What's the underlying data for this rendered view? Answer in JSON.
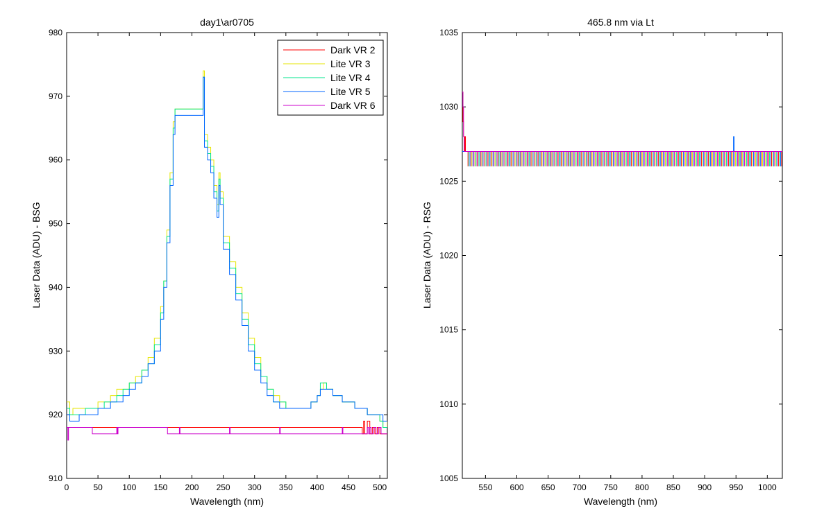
{
  "chart_data": [
    {
      "type": "line",
      "title": "day1\\ar0705",
      "xlabel": "Wavelength (nm)",
      "ylabel": "Laser Data (ADU) - BSG",
      "xlim": [
        0,
        512
      ],
      "ylim": [
        910,
        980
      ],
      "xticks": [
        0,
        50,
        100,
        150,
        200,
        250,
        300,
        350,
        400,
        450,
        500
      ],
      "yticks": [
        910,
        920,
        930,
        940,
        950,
        960,
        970,
        980
      ],
      "grid": false,
      "legend": "top-right",
      "series": [
        {
          "name": "Dark VR 2",
          "color": "#ff0000",
          "x": [
            0,
            100,
            200,
            300,
            400,
            470,
            472,
            474,
            476,
            480,
            484,
            488,
            492,
            496,
            500,
            504,
            508,
            512
          ],
          "y": [
            918,
            918,
            918,
            918,
            918,
            918,
            917,
            919,
            917,
            919,
            917,
            918,
            917,
            918,
            917,
            917,
            917,
            917
          ]
        },
        {
          "name": "Lite VR 3",
          "color": "#e6e600",
          "x": [
            0,
            5,
            10,
            20,
            30,
            40,
            50,
            60,
            70,
            80,
            90,
            100,
            110,
            120,
            130,
            140,
            150,
            155,
            160,
            165,
            170,
            173,
            218,
            220,
            225,
            230,
            235,
            240,
            243,
            245,
            250,
            260,
            270,
            280,
            290,
            300,
            310,
            320,
            330,
            340,
            350,
            360,
            370,
            380,
            390,
            400,
            405,
            410,
            415,
            420,
            425,
            430,
            440,
            450,
            460,
            470,
            480,
            490,
            500,
            505,
            512
          ],
          "y": [
            922,
            920,
            921,
            921,
            921,
            921,
            922,
            922,
            923,
            924,
            924,
            925,
            926,
            927,
            929,
            932,
            937,
            941,
            949,
            958,
            966,
            968,
            974,
            964,
            962,
            960,
            956,
            953,
            958,
            955,
            948,
            944,
            940,
            936,
            932,
            929,
            926,
            924,
            923,
            922,
            921,
            921,
            921,
            921,
            922,
            923,
            924,
            925,
            924,
            924,
            923,
            923,
            922,
            922,
            921,
            921,
            920,
            920,
            919,
            918,
            919
          ]
        },
        {
          "name": "Lite VR 4",
          "color": "#00e68c",
          "x": [
            0,
            5,
            10,
            20,
            30,
            40,
            50,
            60,
            70,
            80,
            90,
            100,
            110,
            120,
            130,
            140,
            150,
            155,
            160,
            165,
            170,
            173,
            218,
            220,
            225,
            230,
            235,
            240,
            243,
            245,
            250,
            260,
            270,
            280,
            290,
            300,
            310,
            320,
            330,
            340,
            350,
            360,
            370,
            380,
            390,
            400,
            405,
            410,
            415,
            420,
            425,
            430,
            440,
            450,
            460,
            470,
            480,
            490,
            500,
            505,
            512
          ],
          "y": [
            921,
            920,
            920,
            920,
            921,
            921,
            921,
            922,
            922,
            923,
            924,
            925,
            925,
            927,
            928,
            931,
            936,
            941,
            948,
            957,
            965,
            968,
            973,
            963,
            961,
            959,
            955,
            952,
            957,
            954,
            947,
            943,
            939,
            935,
            931,
            928,
            926,
            924,
            922,
            922,
            921,
            921,
            921,
            921,
            922,
            923,
            925,
            925,
            924,
            924,
            923,
            923,
            922,
            922,
            921,
            921,
            920,
            920,
            919,
            918,
            918
          ]
        },
        {
          "name": "Lite VR 5",
          "color": "#0066ff",
          "x": [
            0,
            5,
            10,
            20,
            30,
            40,
            50,
            60,
            70,
            80,
            90,
            100,
            110,
            120,
            130,
            140,
            150,
            155,
            160,
            165,
            170,
            173,
            218,
            220,
            225,
            230,
            235,
            240,
            243,
            245,
            250,
            260,
            270,
            280,
            290,
            300,
            310,
            320,
            330,
            340,
            350,
            360,
            370,
            380,
            390,
            400,
            405,
            410,
            415,
            420,
            425,
            430,
            440,
            450,
            460,
            470,
            480,
            490,
            500,
            505,
            512
          ],
          "y": [
            920,
            919,
            919,
            920,
            920,
            920,
            921,
            921,
            922,
            922,
            923,
            924,
            925,
            926,
            928,
            930,
            935,
            940,
            947,
            956,
            964,
            967,
            973,
            962,
            960,
            958,
            954,
            951,
            956,
            953,
            946,
            942,
            938,
            934,
            930,
            927,
            925,
            923,
            922,
            921,
            921,
            921,
            921,
            921,
            922,
            923,
            924,
            924,
            924,
            924,
            923,
            923,
            922,
            922,
            921,
            921,
            920,
            920,
            920,
            919,
            919
          ]
        },
        {
          "name": "Dark VR 6",
          "color": "#cc00cc",
          "x": [
            0,
            2,
            3,
            4,
            40,
            41,
            80,
            81,
            82,
            160,
            161,
            180,
            181,
            260,
            261,
            340,
            341,
            440,
            441,
            480,
            482,
            484,
            486,
            490,
            494,
            498,
            502,
            512
          ],
          "y": [
            918,
            916,
            918,
            918,
            918,
            917,
            918,
            917,
            918,
            918,
            917,
            918,
            917,
            918,
            917,
            918,
            917,
            918,
            917,
            918,
            917,
            918,
            917,
            918,
            917,
            918,
            917,
            917
          ]
        }
      ]
    },
    {
      "type": "line",
      "title": "465.8 nm via Lt",
      "xlabel": "Wavelength (nm)",
      "ylabel": "Laser Data (ADU) - RSG",
      "xlim": [
        513,
        1024
      ],
      "ylim": [
        1005,
        1035
      ],
      "xticks": [
        550,
        600,
        650,
        700,
        750,
        800,
        850,
        900,
        950,
        1000
      ],
      "yticks": [
        1005,
        1010,
        1015,
        1020,
        1025,
        1030,
        1035
      ],
      "grid": false,
      "series": [
        {
          "name": "Dark VR 2",
          "color": "#ff0000",
          "x": [
            513,
            514,
            515,
            516,
            517,
            518,
            520,
            1024
          ],
          "y": [
            1031,
            1029,
            1028,
            1027,
            1028,
            1027,
            1027,
            1027
          ]
        },
        {
          "name": "Lite VR 3",
          "color": "#e6e600",
          "x": [
            513,
            525,
            1024
          ],
          "y": [
            1027,
            1027,
            1027
          ]
        },
        {
          "name": "Lite VR 4",
          "color": "#00e68c",
          "x": [
            513,
            525,
            1024
          ],
          "y": [
            1027,
            1027,
            1027
          ]
        },
        {
          "name": "Lite VR 5",
          "color": "#0066ff",
          "x": [
            513,
            525,
            945,
            946,
            947,
            1024
          ],
          "y": [
            1027,
            1027,
            1027,
            1028,
            1027,
            1027
          ]
        },
        {
          "name": "Dark VR 6",
          "color": "#cc00cc",
          "x": [
            513,
            514,
            515,
            516,
            517,
            518,
            520,
            1024
          ],
          "y": [
            1031,
            1030,
            1028,
            1027,
            1027,
            1027,
            1027,
            1027
          ]
        }
      ],
      "noise_band": [
        1026,
        1027
      ],
      "noise_start": 522
    }
  ]
}
